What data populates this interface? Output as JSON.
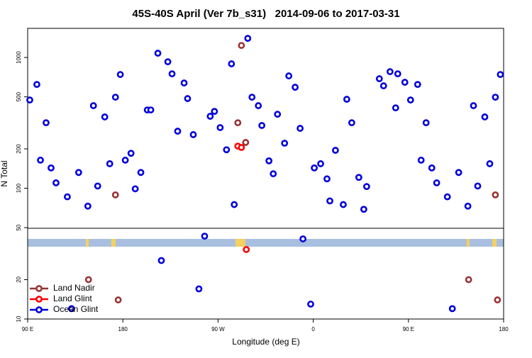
{
  "chart_data": {
    "type": "scatter",
    "title": "45S-40S April (Ver 7b_s31)   2014-09-06 to 2017-03-31",
    "x_label": "Longitude (deg E)",
    "y_label": "N Total",
    "xlim": [
      90,
      540
    ],
    "xticks": [
      {
        "value": 90,
        "label": "90 E"
      },
      {
        "value": 180,
        "label": "180"
      },
      {
        "value": 270,
        "label": "90 W"
      },
      {
        "value": 360,
        "label": "0"
      },
      {
        "value": 450,
        "label": "90 E"
      },
      {
        "value": 540,
        "label": "180"
      }
    ],
    "ylim": [
      10,
      1670
    ],
    "yticks": [
      10,
      20,
      50,
      100,
      200,
      500,
      1000
    ],
    "y_scale": "log",
    "legend": "lower left",
    "series": [
      {
        "name": "Land Nadir",
        "color": "#993333",
        "x": [
          173.0,
          147.5,
          175.6,
          288.7,
          292.1,
          296.1,
          506.9,
          532.2,
          534.2
        ],
        "y": [
          89,
          20,
          14,
          317,
          1236,
          224,
          20,
          89,
          14
        ]
      },
      {
        "name": "Land Glint",
        "color": "#ff0000",
        "x": [
          288.7,
          292.1,
          296.7
        ],
        "y": [
          210,
          205,
          34
        ]
      },
      {
        "name": "Ocean Glint",
        "color": "#0000dd",
        "x": [
          92.0,
          98.7,
          102.1,
          107.4,
          112.1,
          116.8,
          127.5,
          131.5,
          138.2,
          146.9,
          152.2,
          156.2,
          162.9,
          167.6,
          173.0,
          177.6,
          182.3,
          187.7,
          191.7,
          197.0,
          203.1,
          206.4,
          213.1,
          216.4,
          222.5,
          226.5,
          231.8,
          237.9,
          241.2,
          246.6,
          251.9,
          257.3,
          262.6,
          266.6,
          272.0,
          278.0,
          282.7,
          285.3,
          298.1,
          302.1,
          308.1,
          311.4,
          318.1,
          322.2,
          326.2,
          332.9,
          336.9,
          342.9,
          347.6,
          350.3,
          357.6,
          361.0,
          367.0,
          373.0,
          375.7,
          381.0,
          388.4,
          391.7,
          396.4,
          403.1,
          407.8,
          410.5,
          422.5,
          426.5,
          432.6,
          439.9,
          437.9,
          446.6,
          452.0,
          458.7,
          466.7,
          462.0,
          472.1,
          476.7,
          486.8,
          491.5,
          497.5,
          506.2,
          511.5,
          515.5,
          522.2,
          526.9,
          532.2,
          536.9
        ],
        "y": [
          473,
          622,
          164,
          317,
          143,
          110,
          86,
          12,
          132,
          73,
          428,
          104,
          351,
          154,
          497,
          741,
          164,
          185,
          99,
          132,
          397,
          397,
          1078,
          28,
          927,
          750,
          273,
          638,
          485,
          257,
          17,
          43,
          355,
          387,
          291,
          197,
          894,
          75,
          1400,
          497,
          428,
          302,
          162,
          129,
          368,
          221,
          723,
          592,
          287,
          41,
          13,
          143,
          154,
          118,
          80,
          195,
          75,
          479,
          317,
          121,
          69,
          103,
          688,
          607,
          779,
          750,
          412,
          646,
          473,
          622,
          317,
          164,
          143,
          110,
          86,
          12,
          132,
          73,
          428,
          104,
          351,
          154,
          497,
          741
        ]
      }
    ]
  }
}
